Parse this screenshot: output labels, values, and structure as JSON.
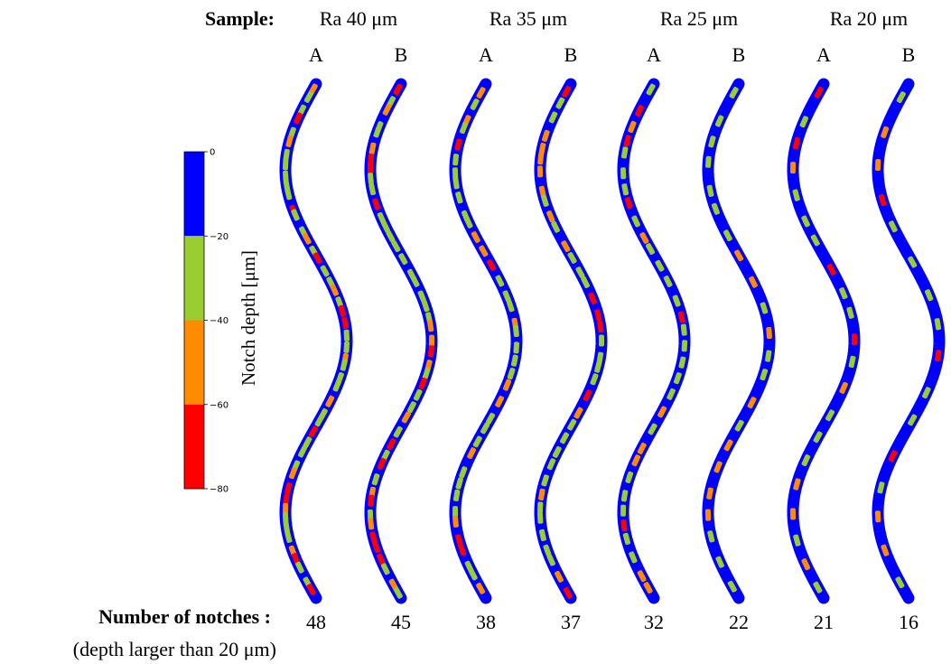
{
  "chart_data": {
    "type": "scatter",
    "header_label": "Sample:",
    "roughness_groups": [
      "Ra 40 μm",
      "Ra 35 μm",
      "Ra 25 μm",
      "Ra 20 μm"
    ],
    "specimens": [
      {
        "group": "Ra 40 μm",
        "label": "A",
        "notches": 48
      },
      {
        "group": "Ra 40 μm",
        "label": "B",
        "notches": 45
      },
      {
        "group": "Ra 35 μm",
        "label": "A",
        "notches": 38
      },
      {
        "group": "Ra 35 μm",
        "label": "B",
        "notches": 37
      },
      {
        "group": "Ra 25 μm",
        "label": "A",
        "notches": 32
      },
      {
        "group": "Ra 25 μm",
        "label": "B",
        "notches": 22
      },
      {
        "group": "Ra 20 μm",
        "label": "A",
        "notches": 21
      },
      {
        "group": "Ra 20 μm",
        "label": "B",
        "notches": 16
      }
    ],
    "count_label": "Number of notches :",
    "count_sublabel": "(depth larger than 20 μm)",
    "colorbar": {
      "label": "Notch depth [μm]",
      "ticks": [
        "0",
        "−20",
        "−40",
        "−60",
        "−80"
      ],
      "bins": [
        {
          "from": 0,
          "to": -20,
          "color": "#0000ff"
        },
        {
          "from": -20,
          "to": -40,
          "color": "#9acd32"
        },
        {
          "from": -40,
          "to": -60,
          "color": "#ff8c00"
        },
        {
          "from": -60,
          "to": -80,
          "color": "#ff0000"
        }
      ]
    }
  }
}
